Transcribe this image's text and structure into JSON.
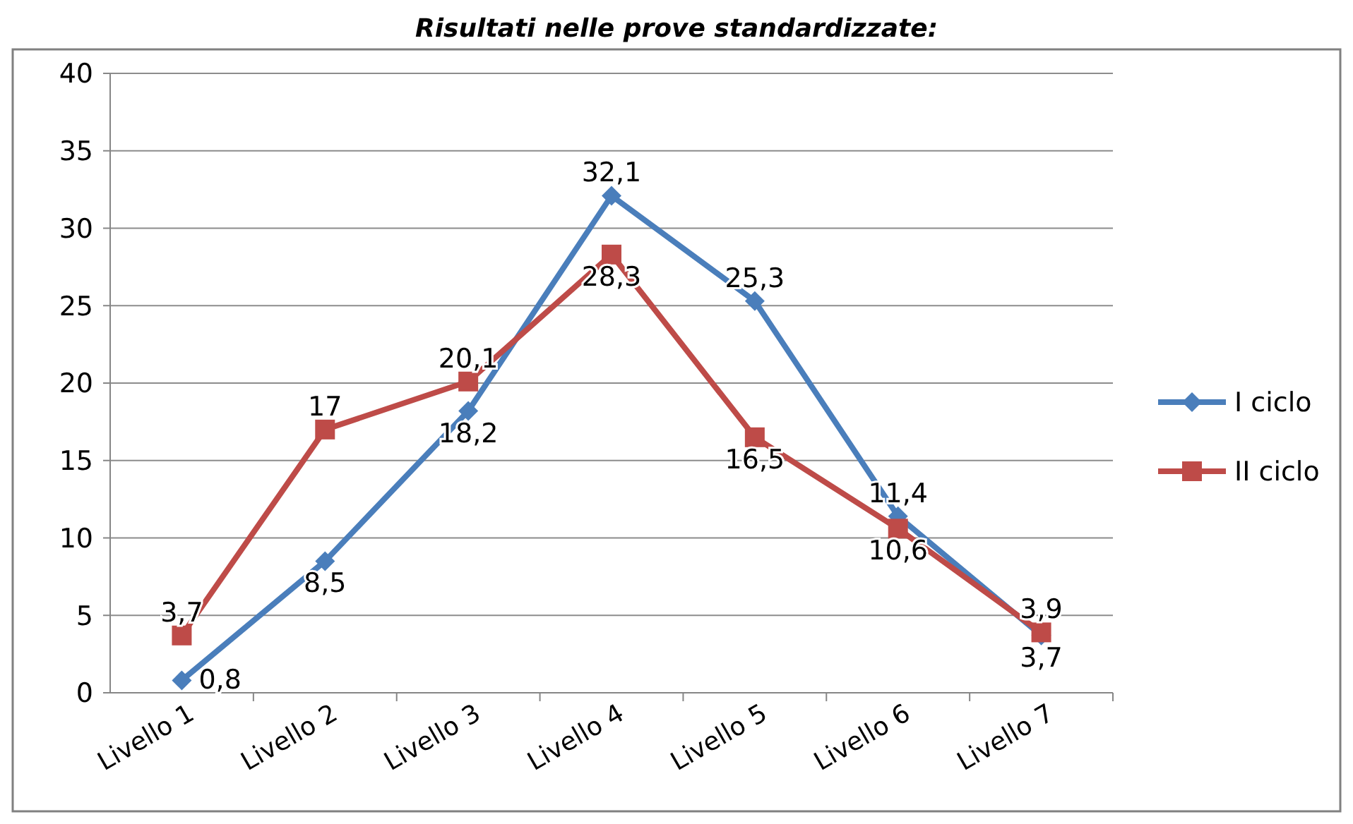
{
  "chart_data": {
    "type": "line",
    "title": "Risultati nelle prove standardizzate:",
    "categories": [
      "Livello 1",
      "Livello 2",
      "Livello 3",
      "Livello 4",
      "Livello 5",
      "Livello 6",
      "Livello 7"
    ],
    "series": [
      {
        "name": "I ciclo",
        "color": "#4a7ebb",
        "marker": "diamond",
        "values": [
          0.8,
          8.5,
          18.2,
          32.1,
          25.3,
          11.4,
          3.7
        ],
        "value_labels": [
          "0,8",
          "8,5",
          "18,2",
          "32,1",
          "25,3",
          "11,4",
          "3,7"
        ]
      },
      {
        "name": "II ciclo",
        "color": "#be4b48",
        "marker": "square",
        "values": [
          3.7,
          17,
          20.1,
          28.3,
          16.5,
          10.6,
          3.9
        ],
        "value_labels": [
          "3,7",
          "17",
          "20,1",
          "28,3",
          "16,5",
          "10,6",
          "3,9"
        ]
      }
    ],
    "ylim": [
      0,
      40
    ],
    "yticks": [
      0,
      5,
      10,
      15,
      20,
      25,
      30,
      35,
      40
    ],
    "grid": "y",
    "legend": "right"
  }
}
